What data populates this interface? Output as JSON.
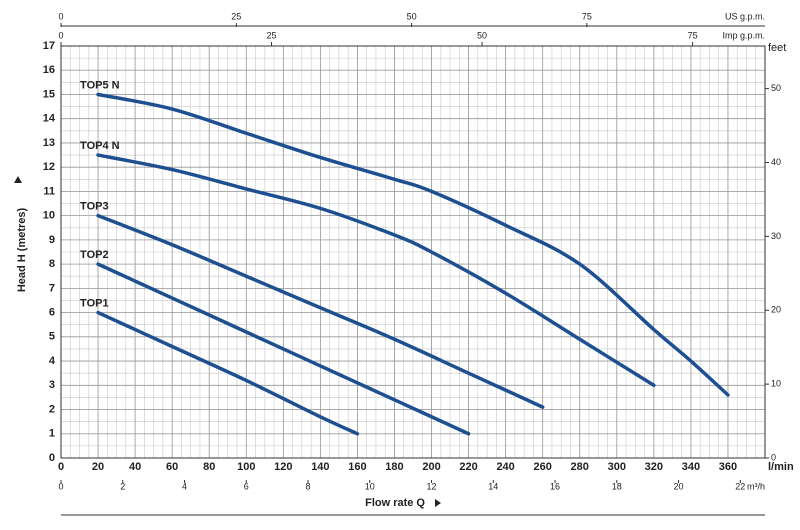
{
  "chart_data": {
    "type": "line",
    "y_label": "Head H  (metres)",
    "x_label": "Flow rate  Q",
    "x_unit": "l/min",
    "xlim": [
      0,
      380
    ],
    "xticks": [
      0,
      20,
      40,
      60,
      80,
      100,
      120,
      140,
      160,
      180,
      200,
      220,
      240,
      260,
      280,
      300,
      320,
      340,
      360
    ],
    "ylim": [
      0,
      17
    ],
    "yticks": [
      0,
      1,
      2,
      3,
      4,
      5,
      6,
      7,
      8,
      9,
      10,
      11,
      12,
      13,
      14,
      15,
      16,
      17
    ],
    "y2_label": "feet",
    "y2lim": [
      0,
      55.77
    ],
    "y2ticks": [
      0,
      10,
      20,
      30,
      40,
      50
    ],
    "other_x_axes": [
      {
        "label": "US g.p.m.",
        "position": "top",
        "lim": [
          0,
          100.4
        ],
        "ticks": [
          0,
          25,
          50,
          75
        ]
      },
      {
        "label": "Imp g.p.m.",
        "position": "top",
        "lim": [
          0,
          83.6
        ],
        "ticks": [
          0,
          25,
          50,
          75
        ]
      },
      {
        "label": "m³/h",
        "position": "bottom",
        "lim": [
          0,
          22.8
        ],
        "ticks": [
          0,
          2,
          4,
          6,
          8,
          10,
          12,
          14,
          16,
          18,
          20,
          22
        ]
      }
    ],
    "grid": true,
    "minor_step": {
      "x": 5,
      "y": 0.5
    },
    "series": [
      {
        "name": "TOP5 N",
        "color": "#1d4f91",
        "x": [
          20,
          60,
          100,
          140,
          180,
          200,
          240,
          280,
          320,
          340,
          360
        ],
        "values": [
          15.0,
          14.4,
          13.4,
          12.4,
          11.5,
          11.0,
          9.6,
          8.0,
          5.3,
          4.0,
          2.6
        ]
      },
      {
        "name": "TOP4 N",
        "color": "#1d4f91",
        "x": [
          20,
          60,
          100,
          140,
          180,
          200,
          240,
          280,
          320
        ],
        "values": [
          12.5,
          11.9,
          11.1,
          10.3,
          9.2,
          8.5,
          6.8,
          4.9,
          3.0
        ]
      },
      {
        "name": "TOP3",
        "color": "#1d4f91",
        "x": [
          20,
          60,
          100,
          140,
          180,
          220,
          260
        ],
        "values": [
          10.0,
          8.8,
          7.5,
          6.2,
          4.9,
          3.5,
          2.1
        ]
      },
      {
        "name": "TOP2",
        "color": "#1d4f91",
        "x": [
          20,
          60,
          100,
          140,
          180,
          220
        ],
        "values": [
          8.0,
          6.6,
          5.2,
          3.8,
          2.4,
          1.0
        ]
      },
      {
        "name": "TOP1",
        "color": "#1d4f91",
        "x": [
          20,
          60,
          100,
          140,
          160
        ],
        "values": [
          6.0,
          4.6,
          3.2,
          1.7,
          1.0
        ]
      }
    ]
  }
}
